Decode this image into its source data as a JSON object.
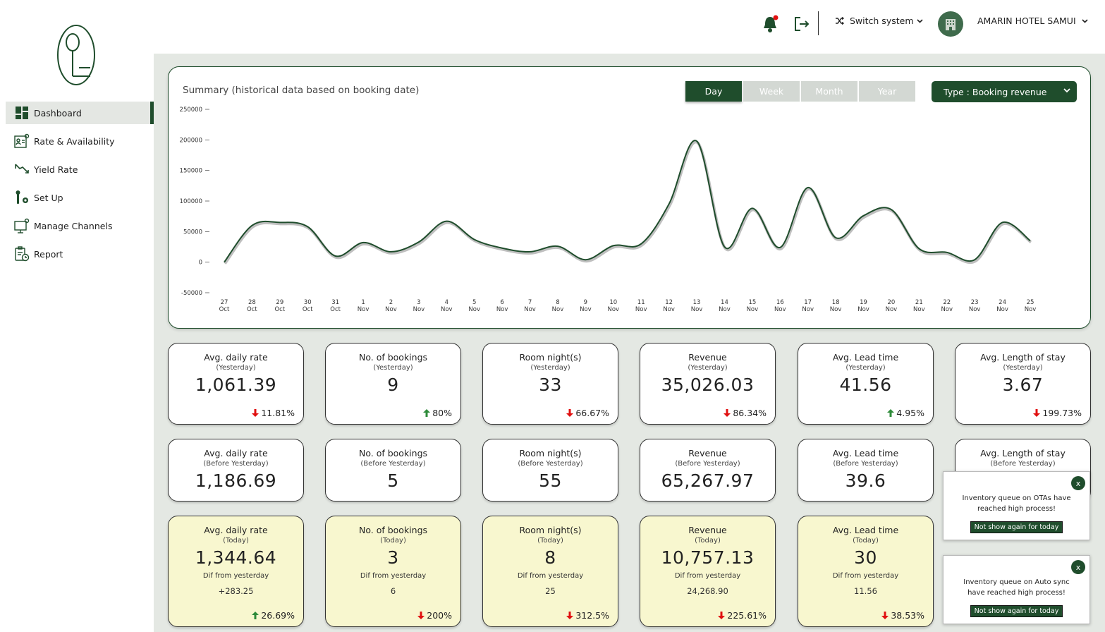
{
  "sidebar": {
    "items": [
      {
        "label": "Dashboard",
        "icon": "dashboard-icon"
      },
      {
        "label": "Rate & Availability",
        "icon": "rate-availability-icon"
      },
      {
        "label": "Yield Rate",
        "icon": "yield-rate-icon"
      },
      {
        "label": "Set Up",
        "icon": "setup-icon"
      },
      {
        "label": "Manage Channels",
        "icon": "manage-channels-icon"
      },
      {
        "label": "Report",
        "icon": "report-icon"
      }
    ],
    "active": "Dashboard"
  },
  "header": {
    "switch_label": "Switch system",
    "hotel_name": "AMARIN HOTEL SAMUI"
  },
  "chart_card": {
    "title": "Summary (historical data based on booking date)",
    "tabs": [
      "Day",
      "Week",
      "Month",
      "Year"
    ],
    "active_tab": "Day",
    "type_label": "Type : Booking revenue"
  },
  "chart_data": {
    "type": "line",
    "ylim": [
      -50000,
      250000
    ],
    "yticks": [
      "250000",
      "200000",
      "150000",
      "100000",
      "50000",
      "0",
      "-50000"
    ],
    "x": [
      "27 Oct",
      "28 Oct",
      "29 Oct",
      "30 Oct",
      "31 Oct",
      "1 Nov",
      "2 Nov",
      "3 Nov",
      "4 Nov",
      "5 Nov",
      "6 Nov",
      "7 Nov",
      "8 Nov",
      "9 Nov",
      "10 Nov",
      "11 Nov",
      "12 Nov",
      "13 Nov",
      "14 Nov",
      "15 Nov",
      "16 Nov",
      "17 Nov",
      "18 Nov",
      "19 Nov",
      "20 Nov",
      "21 Nov",
      "22 Nov",
      "23 Nov",
      "24 Nov",
      "25 Nov"
    ],
    "x_top": [
      "27",
      "28",
      "29",
      "30",
      "31",
      "1",
      "2",
      "3",
      "4",
      "5",
      "6",
      "7",
      "8",
      "9",
      "10",
      "11",
      "12",
      "13",
      "14",
      "15",
      "16",
      "17",
      "18",
      "19",
      "20",
      "21",
      "22",
      "23",
      "24",
      "25"
    ],
    "x_bottom": [
      "Oct",
      "Oct",
      "Oct",
      "Oct",
      "Oct",
      "Nov",
      "Nov",
      "Nov",
      "Nov",
      "Nov",
      "Nov",
      "Nov",
      "Nov",
      "Nov",
      "Nov",
      "Nov",
      "Nov",
      "Nov",
      "Nov",
      "Nov",
      "Nov",
      "Nov",
      "Nov",
      "Nov",
      "Nov",
      "Nov",
      "Nov",
      "Nov",
      "Nov",
      "Nov"
    ],
    "values": [
      0,
      60000,
      65000,
      58000,
      10000,
      32000,
      17000,
      33000,
      67000,
      37000,
      23000,
      17000,
      26000,
      4000,
      27000,
      30000,
      95000,
      198000,
      25000,
      88000,
      24000,
      122000,
      40000,
      76000,
      86000,
      22000,
      16000,
      4000,
      65000,
      35000
    ],
    "grid": false,
    "line_color": "#1f4d2c"
  },
  "cards_yesterday": [
    {
      "title": "Avg. daily rate",
      "sub": "(Yesterday)",
      "value": "1,061.39",
      "change": "11.81%",
      "dir": "down"
    },
    {
      "title": "No. of bookings",
      "sub": "(Yesterday)",
      "value": "9",
      "change": "80%",
      "dir": "up"
    },
    {
      "title": "Room night(s)",
      "sub": "(Yesterday)",
      "value": "33",
      "change": "66.67%",
      "dir": "down"
    },
    {
      "title": "Revenue",
      "sub": "(Yesterday)",
      "value": "35,026.03",
      "change": "86.34%",
      "dir": "down"
    },
    {
      "title": "Avg. Lead time",
      "sub": "(Yesterday)",
      "value": "41.56",
      "change": "4.95%",
      "dir": "up"
    },
    {
      "title": "Avg. Length of stay",
      "sub": "(Yesterday)",
      "value": "3.67",
      "change": "199.73%",
      "dir": "down"
    }
  ],
  "cards_before": [
    {
      "title": "Avg. daily rate",
      "sub": "(Before Yesterday)",
      "value": "1,186.69"
    },
    {
      "title": "No. of bookings",
      "sub": "(Before Yesterday)",
      "value": "5"
    },
    {
      "title": "Room night(s)",
      "sub": "(Before Yesterday)",
      "value": "55"
    },
    {
      "title": "Revenue",
      "sub": "(Before Yesterday)",
      "value": "65,267.97"
    },
    {
      "title": "Avg. Lead time",
      "sub": "(Before Yesterday)",
      "value": "39.6"
    },
    {
      "title": "Avg. Length of stay",
      "sub": "(Before Yesterday)",
      "value": ""
    }
  ],
  "cards_today": [
    {
      "title": "Avg. daily rate",
      "sub": "(Today)",
      "value": "1,344.64",
      "diff_label": "Dif from yesterday",
      "diff": "+283.25",
      "change": "26.69%",
      "dir": "up"
    },
    {
      "title": "No. of bookings",
      "sub": "(Today)",
      "value": "3",
      "diff_label": "Dif from yesterday",
      "diff": "6",
      "change": "200%",
      "dir": "down"
    },
    {
      "title": "Room night(s)",
      "sub": "(Today)",
      "value": "8",
      "diff_label": "Dif from yesterday",
      "diff": "25",
      "change": "312.5%",
      "dir": "down"
    },
    {
      "title": "Revenue",
      "sub": "(Today)",
      "value": "10,757.13",
      "diff_label": "Dif from yesterday",
      "diff": "24,268.90",
      "change": "225.61%",
      "dir": "down"
    },
    {
      "title": "Avg. Lead time",
      "sub": "(Today)",
      "value": "30",
      "diff_label": "Dif from yesterday",
      "diff": "11.56",
      "change": "38.53%",
      "dir": "down"
    }
  ],
  "toasts": [
    {
      "close": "x",
      "message": "Inventory queue on OTAs have reached high process!",
      "button": "Not show again for today"
    },
    {
      "close": "x",
      "message": "Inventory queue on Auto sync have reached high process!",
      "button": "Not show again for today"
    }
  ],
  "colors": {
    "brand": "#1f4d2c",
    "up": "#2e8b3a",
    "down": "#e01010",
    "today_bg": "#f8f7cf"
  }
}
